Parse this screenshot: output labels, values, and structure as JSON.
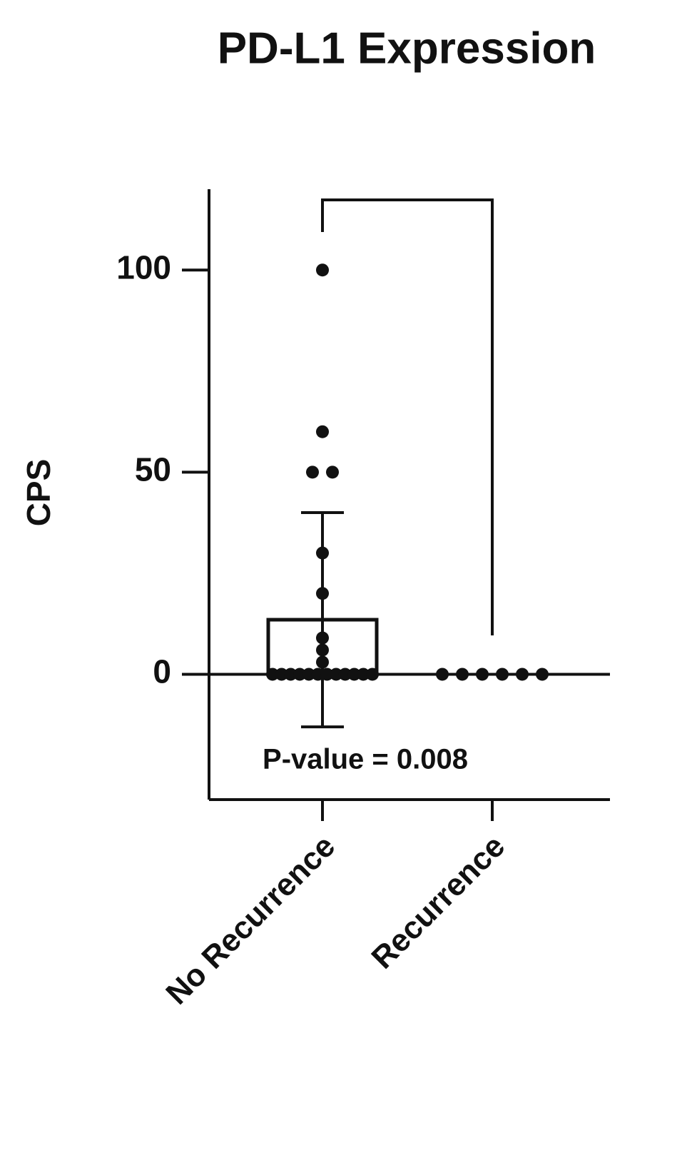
{
  "chart_data": {
    "type": "bar",
    "title": "PD-L1 Expression",
    "y_label": "CPS",
    "categories": [
      "No Recurrence",
      "Recurrence"
    ],
    "values": [
      13.5,
      0
    ],
    "errors": [
      26.5,
      0
    ],
    "points": [
      [
        100,
        60,
        50,
        50,
        30,
        20,
        9,
        6,
        3,
        0,
        0,
        0,
        0,
        0,
        0,
        0,
        0,
        0,
        0,
        0,
        0
      ],
      [
        0,
        0,
        0,
        0,
        0,
        0
      ]
    ],
    "color": "#111111",
    "ylim": [
      -31,
      120
    ],
    "yticks": [
      0,
      50,
      100
    ],
    "annotation": "P-value = 0.008"
  }
}
